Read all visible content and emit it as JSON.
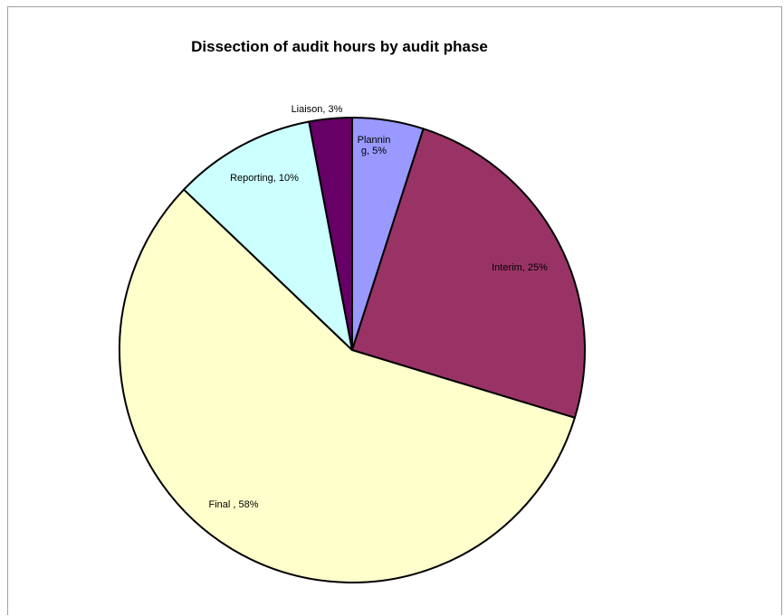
{
  "chart_data": {
    "type": "pie",
    "title": "Dissection of audit hours by audit phase",
    "start_angle_deg": 0,
    "slices": [
      {
        "label_lines": [
          "Plannin",
          "g, 5%"
        ],
        "value": 5,
        "color": "#9999ff"
      },
      {
        "label_lines": [
          "Interim, 25%"
        ],
        "value": 25,
        "color": "#993366"
      },
      {
        "label_lines": [
          "Final , 58%"
        ],
        "value": 58,
        "color": "#ffffcc"
      },
      {
        "label_lines": [
          "Reporting, 10%"
        ],
        "value": 10,
        "color": "#ccffff"
      },
      {
        "label_lines": [
          "Liaison, 3%"
        ],
        "value": 3,
        "color": "#660066"
      }
    ]
  }
}
